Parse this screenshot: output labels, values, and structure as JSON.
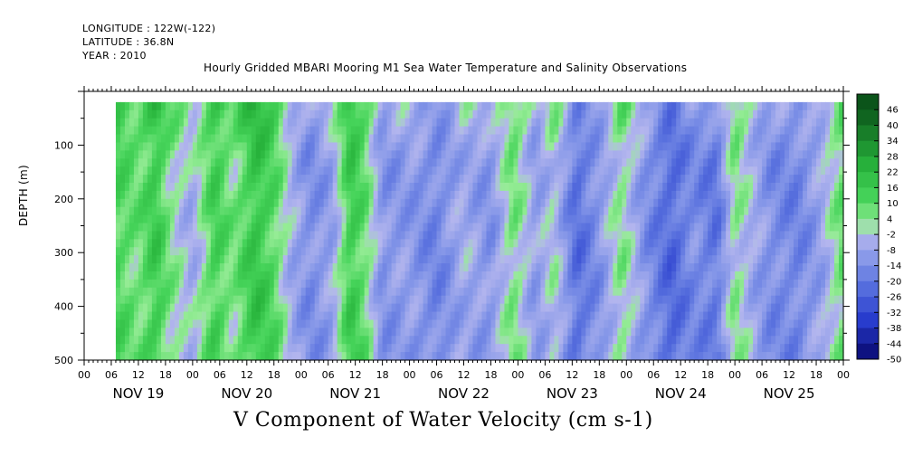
{
  "header": {
    "longitude": "LONGITUDE : 122W(-122)",
    "latitude": "LATITUDE : 36.8N",
    "year": "YEAR : 2010",
    "title": "Hourly Gridded MBARI Mooring M1 Sea Water Temperature and Salinity Observations"
  },
  "chart_data": {
    "type": "heatmap",
    "title": "Hourly Gridded MBARI Mooring M1 Sea Water Temperature and Salinity Observations",
    "xlabel": "V Component of Water Velocity (cm s-1)",
    "ylabel": "DEPTH (m)",
    "y_reversed": true,
    "ylim": [
      500,
      0
    ],
    "y_ticks": [
      100,
      200,
      300,
      400,
      500
    ],
    "x_range_hours": [
      0,
      168
    ],
    "x_hour_labels": [
      "00",
      "06",
      "12",
      "18",
      "00",
      "06",
      "12",
      "18",
      "00",
      "06",
      "12",
      "18",
      "00",
      "06",
      "12",
      "18",
      "00",
      "06",
      "12",
      "18",
      "00",
      "06",
      "12",
      "18",
      "00",
      "06",
      "12",
      "18",
      "00"
    ],
    "x_dates": [
      "NOV 19",
      "NOV 20",
      "NOV 21",
      "NOV 22",
      "NOV 23",
      "NOV 24",
      "NOV 25"
    ],
    "data_coverage": {
      "start_hour": 7,
      "end_hour": 168,
      "depth_top": 20,
      "depth_bottom": 490
    },
    "colorbar": {
      "levels": [
        48,
        46,
        40,
        34,
        28,
        22,
        16,
        10,
        4,
        -2,
        -8,
        -14,
        -20,
        -26,
        -32,
        -38,
        -44,
        -50
      ],
      "labels": [
        "46",
        "40",
        "34",
        "28",
        "22",
        "16",
        "10",
        "4",
        "-2",
        "-8",
        "-14",
        "-20",
        "-26",
        "-32",
        "-38",
        "-44",
        "-50"
      ]
    },
    "colors": {
      "strong_positive": "#0d5e1e",
      "positive": "#36c64e",
      "weak_positive": "#98ec98",
      "weak_negative": "#b4b6ee",
      "negative": "#5770de",
      "strong_negative": "#0a0a78"
    },
    "profiles": [
      {
        "hour": 7,
        "v": 12
      },
      {
        "hour": 12,
        "v": 6
      },
      {
        "hour": 16,
        "v": 16
      },
      {
        "hour": 19,
        "v": 4
      },
      {
        "hour": 24,
        "v": -6
      },
      {
        "hour": 29,
        "v": 14
      },
      {
        "hour": 33,
        "v": 4
      },
      {
        "hour": 38,
        "v": 18
      },
      {
        "hour": 42,
        "v": 10
      },
      {
        "hour": 46,
        "v": -6
      },
      {
        "hour": 50,
        "v": -14
      },
      {
        "hour": 55,
        "v": -8
      },
      {
        "hour": 59,
        "v": 16
      },
      {
        "hour": 62,
        "v": 8
      },
      {
        "hour": 66,
        "v": -12
      },
      {
        "hour": 72,
        "v": -10
      },
      {
        "hour": 78,
        "v": -16
      },
      {
        "hour": 84,
        "v": -6
      },
      {
        "hour": 90,
        "v": -12
      },
      {
        "hour": 95,
        "v": 6
      },
      {
        "hour": 100,
        "v": -10
      },
      {
        "hour": 104,
        "v": 0
      },
      {
        "hour": 109,
        "v": -22
      },
      {
        "hour": 114,
        "v": -12
      },
      {
        "hour": 119,
        "v": 4
      },
      {
        "hour": 124,
        "v": -12
      },
      {
        "hour": 130,
        "v": -24
      },
      {
        "hour": 135,
        "v": -14
      },
      {
        "hour": 140,
        "v": -20
      },
      {
        "hour": 144,
        "v": 4
      },
      {
        "hour": 148,
        "v": -6
      },
      {
        "hour": 152,
        "v": -14
      },
      {
        "hour": 158,
        "v": -16
      },
      {
        "hour": 163,
        "v": -8
      },
      {
        "hour": 168,
        "v": 8
      }
    ]
  }
}
